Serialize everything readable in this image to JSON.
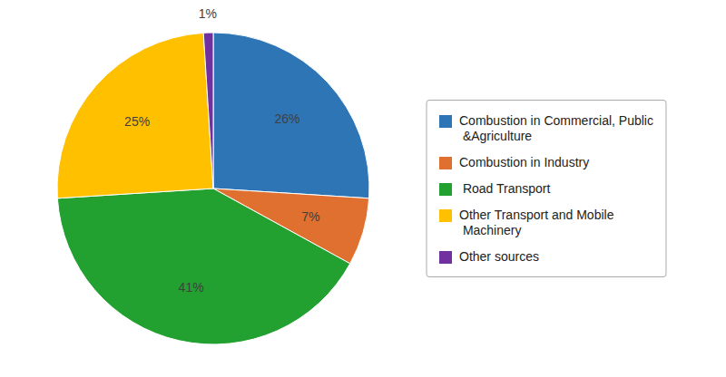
{
  "chart_data": {
    "type": "pie",
    "categories": [
      "Combustion in Commercial, Public\n &Agriculture",
      "Combustion in Industry",
      " Road Transport",
      "Other Transport and Mobile\n Machinery",
      "Other sources"
    ],
    "values": [
      26,
      7,
      41,
      25,
      1
    ],
    "value_labels": [
      "26%",
      "7%",
      "41%",
      "25%",
      "1%"
    ],
    "colors": [
      "#2E75B6",
      "#E07030",
      "#22A030",
      "#FFC000",
      "#7030A0"
    ],
    "data_labels": true,
    "legend": "right"
  }
}
